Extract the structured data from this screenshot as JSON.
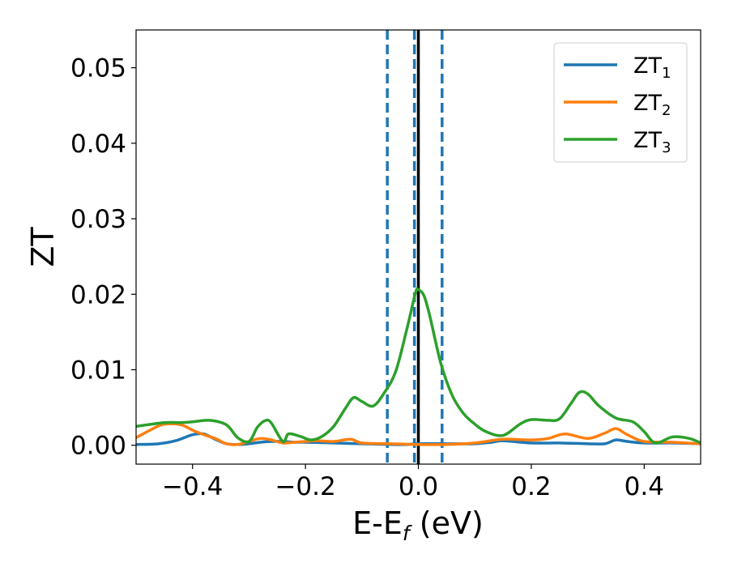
{
  "chart_data": {
    "type": "line",
    "xlabel": {
      "main": "E-E",
      "sub": "f",
      "unit": " (eV)"
    },
    "ylabel": "ZT",
    "xlim": [
      -0.5,
      0.5
    ],
    "ylim": [
      -0.0025,
      0.055
    ],
    "xticks": [
      -0.4,
      -0.2,
      0.0,
      0.2,
      0.4
    ],
    "xtick_labels": [
      "−0.4",
      "−0.2",
      "0.0",
      "0.2",
      "0.4"
    ],
    "yticks": [
      0.0,
      0.01,
      0.02,
      0.03,
      0.04,
      0.05
    ],
    "ytick_labels": [
      "0.00",
      "0.01",
      "0.02",
      "0.03",
      "0.04",
      "0.05"
    ],
    "grid": false,
    "legend_position": "top-right",
    "colors": {
      "zt1": "#1f77b4",
      "zt2": "#ff7f0e",
      "zt3": "#2ca02c",
      "fermi": "#000000",
      "window": "#1f77b4"
    },
    "vlines": {
      "solid": [
        0.0
      ],
      "dashed": [
        -0.055,
        -0.007,
        0.042
      ]
    },
    "series": [
      {
        "key": "zt1",
        "name_main": "ZT",
        "name_sub": "1",
        "x": [
          -0.5,
          -0.46,
          -0.43,
          -0.4,
          -0.38,
          -0.36,
          -0.34,
          -0.32,
          -0.3,
          -0.28,
          -0.26,
          -0.24,
          -0.22,
          -0.2,
          -0.15,
          -0.1,
          -0.05,
          -0.02,
          0.0,
          0.05,
          0.1,
          0.13,
          0.15,
          0.2,
          0.25,
          0.3,
          0.33,
          0.35,
          0.37,
          0.4,
          0.45,
          0.5
        ],
        "y": [
          0.0001,
          0.0002,
          0.0006,
          0.0014,
          0.0015,
          0.0008,
          0.0002,
          0.0001,
          0.0002,
          0.0004,
          0.0005,
          0.0005,
          0.0004,
          0.0004,
          0.0003,
          0.0002,
          0.0001,
          0.0001,
          0.0002,
          0.0002,
          0.0002,
          0.0004,
          0.0006,
          0.0003,
          0.0003,
          0.0002,
          0.0002,
          0.0007,
          0.0005,
          0.0003,
          0.0003,
          0.0002
        ]
      },
      {
        "key": "zt2",
        "name_main": "ZT",
        "name_sub": "2",
        "x": [
          -0.5,
          -0.47,
          -0.45,
          -0.42,
          -0.4,
          -0.38,
          -0.36,
          -0.34,
          -0.32,
          -0.3,
          -0.28,
          -0.26,
          -0.24,
          -0.22,
          -0.2,
          -0.18,
          -0.15,
          -0.12,
          -0.1,
          -0.05,
          0.0,
          0.05,
          0.1,
          0.15,
          0.2,
          0.23,
          0.26,
          0.3,
          0.33,
          0.35,
          0.37,
          0.4,
          0.45,
          0.5
        ],
        "y": [
          0.001,
          0.0022,
          0.0028,
          0.0027,
          0.002,
          0.0014,
          0.0009,
          0.0002,
          0.0001,
          0.0005,
          0.0009,
          0.0007,
          0.0003,
          0.0004,
          0.0005,
          0.0006,
          0.0005,
          0.0008,
          0.0003,
          0.0002,
          0.0001,
          0.0001,
          0.0003,
          0.0008,
          0.0007,
          0.0009,
          0.0015,
          0.0009,
          0.0016,
          0.0022,
          0.0014,
          0.0005,
          0.0004,
          0.0002
        ]
      },
      {
        "key": "zt3",
        "name_main": "ZT",
        "name_sub": "3",
        "x": [
          -0.5,
          -0.45,
          -0.42,
          -0.4,
          -0.37,
          -0.34,
          -0.32,
          -0.3,
          -0.285,
          -0.27,
          -0.26,
          -0.24,
          -0.23,
          -0.21,
          -0.19,
          -0.17,
          -0.15,
          -0.13,
          -0.115,
          -0.1,
          -0.08,
          -0.06,
          -0.04,
          -0.02,
          -0.005,
          0.0,
          0.01,
          0.02,
          0.04,
          0.06,
          0.08,
          0.1,
          0.12,
          0.15,
          0.18,
          0.2,
          0.23,
          0.25,
          0.27,
          0.285,
          0.3,
          0.32,
          0.35,
          0.38,
          0.4,
          0.42,
          0.45,
          0.48,
          0.5
        ],
        "y": [
          0.0025,
          0.003,
          0.003,
          0.0031,
          0.0033,
          0.0027,
          0.001,
          0.0005,
          0.0024,
          0.0033,
          0.0029,
          0.0005,
          0.0015,
          0.0012,
          0.0007,
          0.0012,
          0.0025,
          0.0048,
          0.0063,
          0.0058,
          0.0052,
          0.007,
          0.0098,
          0.0155,
          0.0202,
          0.0206,
          0.0198,
          0.0172,
          0.0108,
          0.0066,
          0.0042,
          0.0028,
          0.0018,
          0.0013,
          0.0028,
          0.0034,
          0.0033,
          0.0035,
          0.0055,
          0.007,
          0.0068,
          0.0052,
          0.0036,
          0.0031,
          0.0018,
          0.0003,
          0.0011,
          0.0009,
          0.0003
        ]
      }
    ]
  }
}
